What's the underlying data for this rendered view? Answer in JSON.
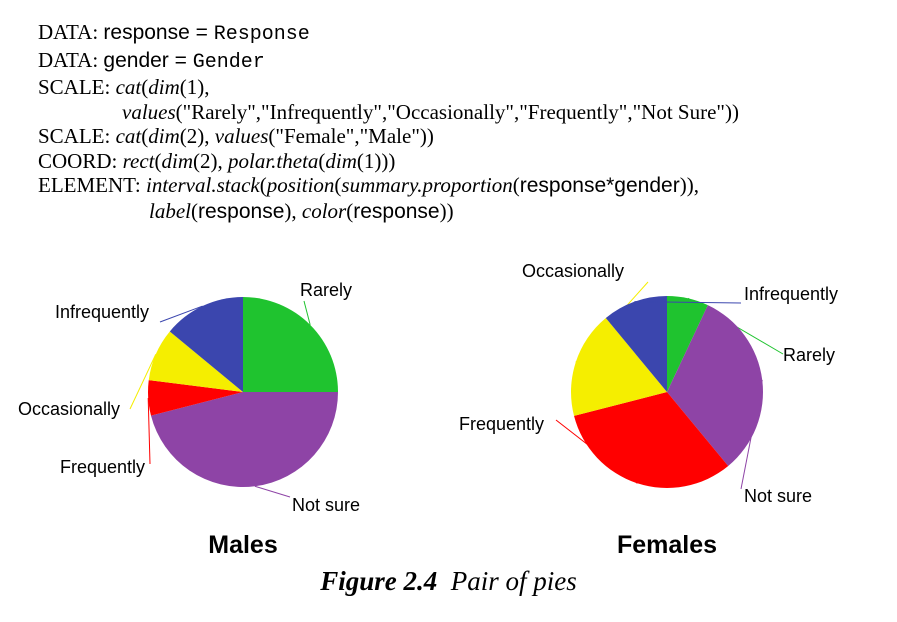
{
  "code": {
    "l1_kw": "DATA:",
    "l1_var": "response",
    "l1_eq": " = ",
    "l1_src": "Response",
    "l2_kw": "DATA:",
    "l2_var": "gender",
    "l2_eq": " = ",
    "l2_src": "Gender",
    "l3_kw": "SCALE:",
    "l3_fn": "cat",
    "l3_dim": "dim",
    "l3_arg": "(1),",
    "l4_values": "values",
    "l4_args": "(\"Rarely\",\"Infrequently\",\"Occasionally\",\"Frequently\",\"Not Sure\"))",
    "l5_kw": "SCALE:",
    "l5_fn": "cat",
    "l5_dim": "dim",
    "l5_arg": "(2), ",
    "l5_values": "values",
    "l5_args": "(\"Female\",\"Male\"))",
    "l6_kw": "COORD:",
    "l6_fn": "rect",
    "l6_dim": "dim",
    "l6_arg": "(2), ",
    "l6_polar": "polar.theta",
    "l6_dim2": "dim",
    "l6_arg2": "(1)))",
    "l7_kw": "ELEMENT:",
    "l7_fn": "interval.stack",
    "l7_pos": "position",
    "l7_sum": "summary.proportion",
    "l7_expr": "response*gender",
    "l7_close": ")),",
    "l8_label": "label",
    "l8_resp": "response",
    "l8_mid": "), ",
    "l8_color": "color",
    "l8_resp2": "response",
    "l8_close": "))"
  },
  "caption": {
    "figure": "Figure 2.4",
    "text": "Pair of pies"
  },
  "chart_data": [
    {
      "type": "pie",
      "title": "Males",
      "slices": [
        {
          "label": "Rarely",
          "value": 0.25,
          "color": "#1fc32f"
        },
        {
          "label": "Not sure",
          "value": 0.46,
          "color": "#8e44a6"
        },
        {
          "label": "Frequently",
          "value": 0.06,
          "color": "#ff0000"
        },
        {
          "label": "Occasionally",
          "value": 0.09,
          "color": "#f5ee00"
        },
        {
          "label": "Infrequently",
          "value": 0.14,
          "color": "#3b46ae"
        }
      ]
    },
    {
      "type": "pie",
      "title": "Females",
      "slices": [
        {
          "label": "Rarely",
          "value": 0.07,
          "color": "#1fc32f"
        },
        {
          "label": "Not sure",
          "value": 0.32,
          "color": "#8e44a6"
        },
        {
          "label": "Frequently",
          "value": 0.32,
          "color": "#ff0000"
        },
        {
          "label": "Occasionally",
          "value": 0.18,
          "color": "#f5ee00"
        },
        {
          "label": "Infrequently",
          "value": 0.11,
          "color": "#3b46ae"
        }
      ]
    }
  ]
}
